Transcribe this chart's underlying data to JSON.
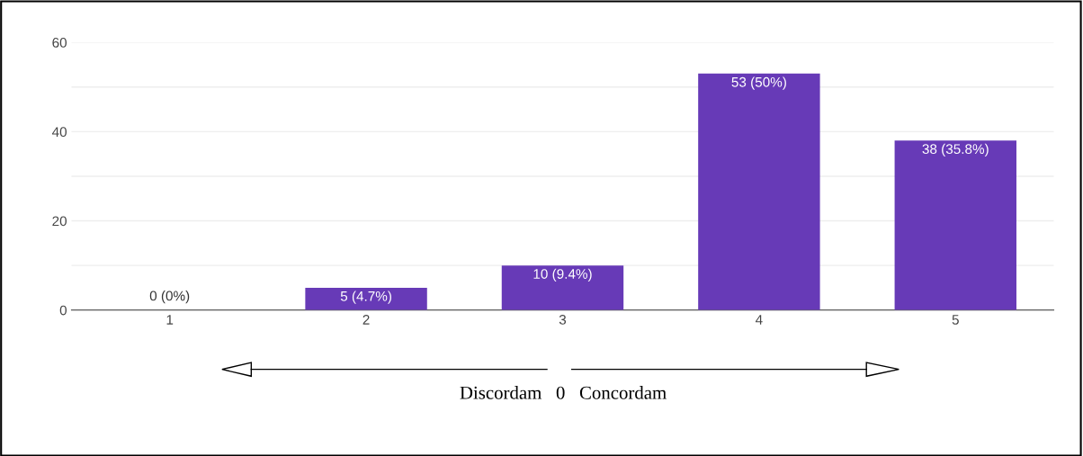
{
  "chart_data": {
    "type": "bar",
    "categories": [
      "1",
      "2",
      "3",
      "4",
      "5"
    ],
    "values": [
      0,
      5,
      10,
      53,
      38
    ],
    "value_labels": [
      "0 (0%)",
      "5 (4.7%)",
      "10 (9.4%)",
      "53 (50%)",
      "38 (35.8%)"
    ],
    "color": "#673ab7",
    "ylim": [
      0,
      60
    ],
    "yticks": [
      0,
      {
        "value": 10,
        "label": null
      },
      20,
      {
        "value": 30,
        "label": null
      },
      40,
      {
        "value": 50,
        "label": null
      },
      60
    ],
    "grid": "y",
    "annotations": [
      "Discordam   0   Concordam"
    ]
  }
}
